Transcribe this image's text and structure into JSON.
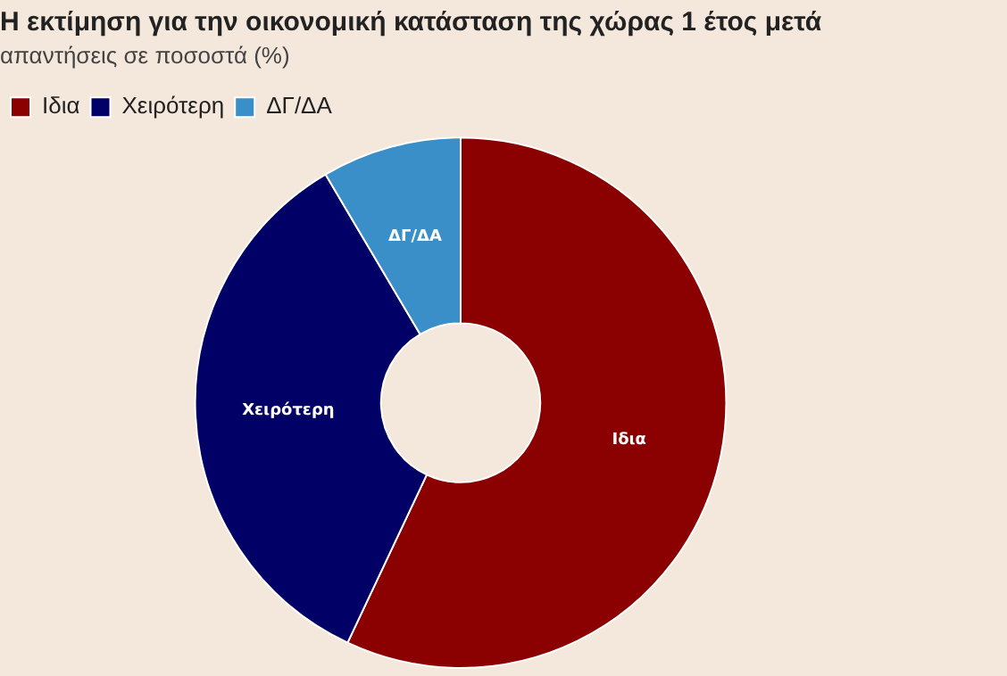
{
  "chart_data": {
    "type": "donut",
    "title": "Η εκτίμηση για την οικονομική κατάσταση της χώρας 1 έτος μετά",
    "subtitle": "απαντήσεις σε ποσοστά (%)",
    "categories": [
      "Ιδια",
      "Χειρότερη",
      "ΔΓ/ΔΑ"
    ],
    "values": [
      57,
      34.5,
      8.5
    ],
    "colors": [
      "#8b0000",
      "#000066",
      "#3a8fc9"
    ],
    "legend": "top left"
  }
}
